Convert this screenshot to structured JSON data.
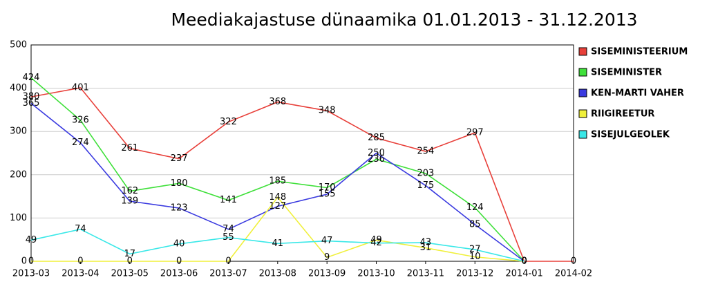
{
  "chart_data": {
    "type": "line",
    "title": "Meediakajastuse dünaamika 01.01.2013 - 31.12.2013",
    "categories": [
      "2013-03",
      "2013-04",
      "2013-05",
      "2013-06",
      "2013-07",
      "2013-08",
      "2013-09",
      "2013-10",
      "2013-11",
      "2013-12",
      "2014-01",
      "2014-02"
    ],
    "series": [
      {
        "name": "SISEMINISTEERIUM",
        "color": "#e8403a",
        "values": [
          380,
          401,
          261,
          237,
          322,
          368,
          348,
          285,
          254,
          297,
          0,
          0
        ]
      },
      {
        "name": "SISEMINISTER",
        "color": "#3fe03a",
        "values": [
          424,
          326,
          162,
          180,
          141,
          185,
          170,
          236,
          203,
          124,
          0,
          null
        ]
      },
      {
        "name": "KEN-MARTI VAHER",
        "color": "#3a3ae0",
        "values": [
          365,
          274,
          139,
          123,
          74,
          127,
          155,
          250,
          175,
          85,
          0,
          null
        ]
      },
      {
        "name": "RIIGIREETUR",
        "color": "#f0f03a",
        "values": [
          0,
          0,
          0,
          0,
          0,
          148,
          9,
          49,
          31,
          10,
          0,
          null
        ]
      },
      {
        "name": "SISEJULGEOLEK",
        "color": "#3ae8e8",
        "values": [
          49,
          74,
          17,
          40,
          55,
          41,
          47,
          42,
          43,
          27,
          0,
          null
        ]
      }
    ],
    "ylim": [
      0,
      500
    ],
    "yticks": [
      0,
      100,
      200,
      300,
      400,
      500
    ],
    "grid": true,
    "legend": "right"
  }
}
